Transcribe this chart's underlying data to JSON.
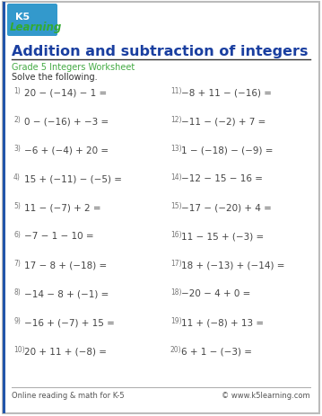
{
  "title": "Addition and subtraction of integers",
  "subtitle": "Grade 5 Integers Worksheet",
  "instruction": "Solve the following.",
  "footer_left": "Online reading & math for K-5",
  "footer_right": "© www.k5learning.com",
  "bg_color": "#ffffff",
  "border_color": "#bbbbbb",
  "title_color": "#1a3fa0",
  "subtitle_color": "#44aa44",
  "problem_color": "#444444",
  "footer_color": "#555555",
  "left_problems": [
    {
      "num": "1)",
      "expr": "20 − (−14) − 1 ="
    },
    {
      "num": "2)",
      "expr": "0 − (−16) + −3 ="
    },
    {
      "num": "3)",
      "expr": "−6 + (−4) + 20 ="
    },
    {
      "num": "4)",
      "expr": "15 + (−11) − (−5) ="
    },
    {
      "num": "5)",
      "expr": "11 − (−7) + 2 ="
    },
    {
      "num": "6)",
      "expr": "−7 − 1 − 10 ="
    },
    {
      "num": "7)",
      "expr": "17 − 8 + (−18) ="
    },
    {
      "num": "8)",
      "expr": "−14 − 8 + (−1) ="
    },
    {
      "num": "9)",
      "expr": "−16 + (−7) + 15 ="
    },
    {
      "num": "10)",
      "expr": "20 + 11 + (−8) ="
    }
  ],
  "right_problems": [
    {
      "num": "11)",
      "expr": "−8 + 11 − (−16) ="
    },
    {
      "num": "12)",
      "expr": "−11 − (−2) + 7 ="
    },
    {
      "num": "13)",
      "expr": "1 − (−18) − (−9) ="
    },
    {
      "num": "14)",
      "expr": "−12 − 15 − 16 ="
    },
    {
      "num": "15)",
      "expr": "−17 − (−20) + 4 ="
    },
    {
      "num": "16)",
      "expr": "11 − 15 + (−3) ="
    },
    {
      "num": "17)",
      "expr": "18 + (−13) + (−14) ="
    },
    {
      "num": "18)",
      "expr": "−20 − 4 + 0 ="
    },
    {
      "num": "19)",
      "expr": "11 + (−8) + 13 ="
    },
    {
      "num": "20)",
      "expr": "6 + 1 − (−3) ="
    }
  ],
  "logo_k5_color": "#ffffff",
  "logo_bg_color": "#3399cc",
  "logo_learning_color": "#33aa33",
  "outer_border_color": "#2255aa",
  "left_border_color": "#4488cc"
}
